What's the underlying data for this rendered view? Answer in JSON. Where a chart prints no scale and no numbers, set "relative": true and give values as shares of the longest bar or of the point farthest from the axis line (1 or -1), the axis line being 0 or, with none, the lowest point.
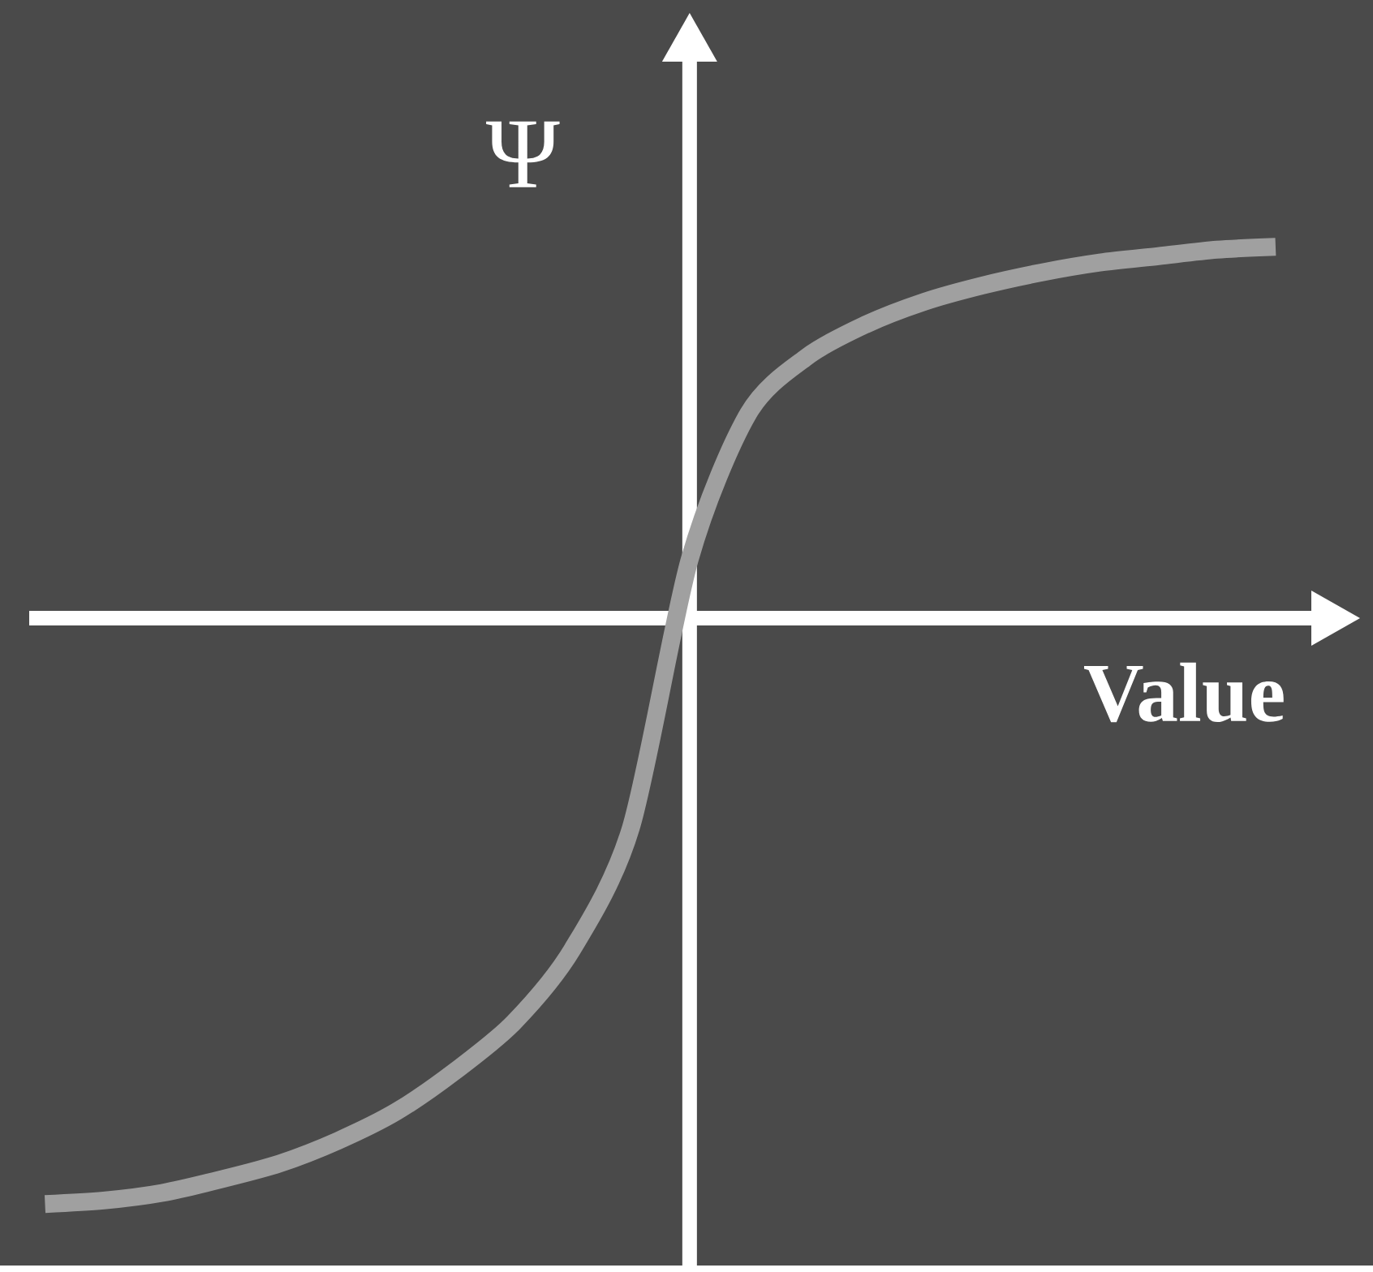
{
  "chart_data": {
    "type": "line",
    "xlabel": "Value",
    "ylabel": "Ψ",
    "relative": true,
    "color": "#a0a0a0",
    "categories": [
      null,
      null,
      null,
      null,
      null,
      null,
      null,
      null,
      null,
      null,
      null,
      null,
      null,
      null,
      null,
      null,
      null,
      null,
      null,
      null,
      null,
      null
    ],
    "values": [
      -1,
      -0.994,
      -0.981,
      -0.958,
      -0.931,
      -0.892,
      -0.842,
      -0.773,
      -0.69,
      -0.565,
      -0.357,
      0.1,
      0.349,
      0.446,
      0.501,
      0.54,
      0.568,
      0.59,
      0.607,
      0.618,
      0.629,
      0.634
    ]
  }
}
